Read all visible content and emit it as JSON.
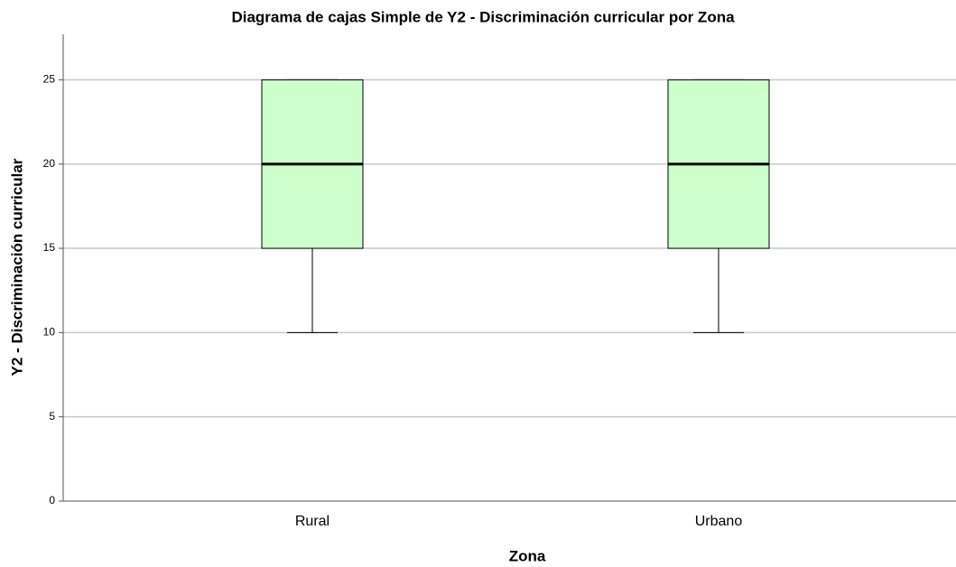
{
  "chart_data": {
    "type": "box",
    "title": "Diagrama de cajas Simple de Y2 - Discriminación curricular por Zona",
    "xlabel": "Zona",
    "ylabel": "Y2 - Discriminación curricular",
    "categories": [
      "Rural",
      "Urbano"
    ],
    "boxes": [
      {
        "min": 10,
        "q1": 15,
        "median": 20,
        "q3": 25,
        "max": 25
      },
      {
        "min": 10,
        "q1": 15,
        "median": 20,
        "q3": 25,
        "max": 25
      }
    ],
    "color": "#ccffcc",
    "ylim": [
      0,
      27.7
    ],
    "yticks": [
      0,
      5,
      10,
      15,
      20,
      25
    ],
    "grid": true
  }
}
